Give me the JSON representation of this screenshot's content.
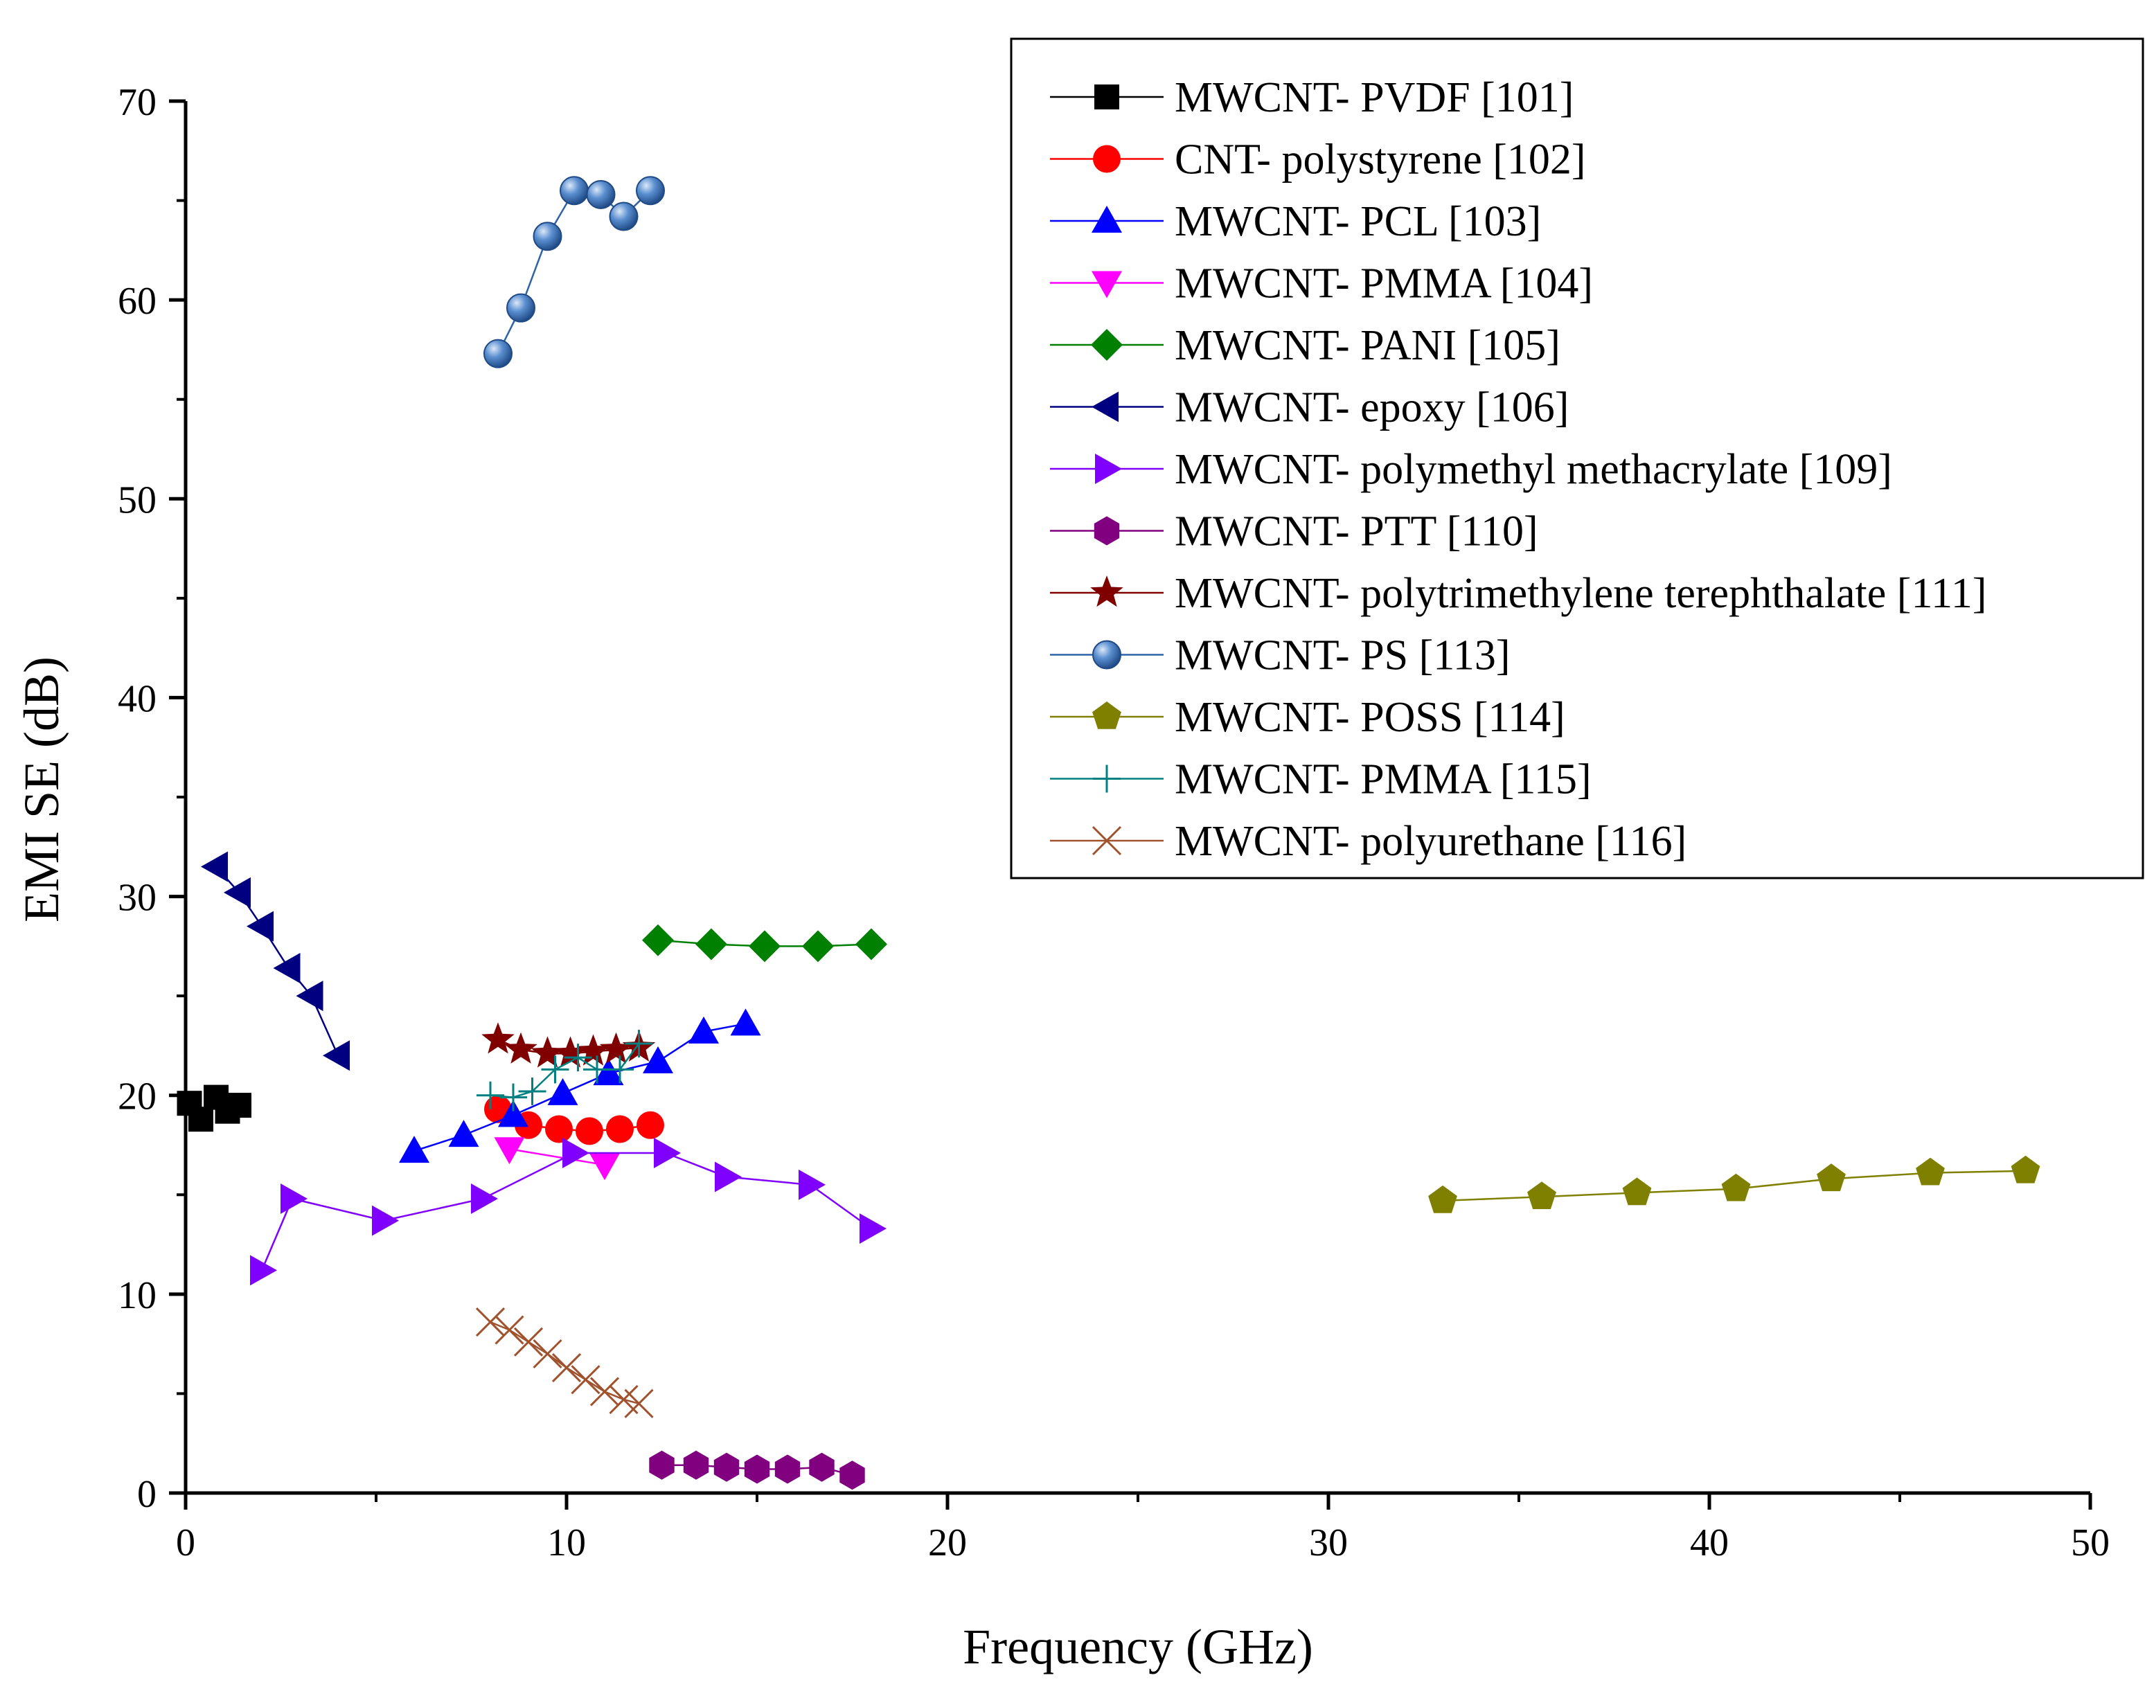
{
  "chart_data": {
    "type": "scatter",
    "title": "",
    "xlabel": "Frequency (GHz)",
    "ylabel": "EMI SE (dB)",
    "xlim": [
      0,
      50
    ],
    "ylim": [
      0,
      70
    ],
    "x_ticks": [
      "0",
      "10",
      "20",
      "30",
      "40",
      "50"
    ],
    "y_ticks": [
      "0",
      "10",
      "20",
      "30",
      "40",
      "50",
      "60",
      "70"
    ],
    "grid": false,
    "legend_position": "top-right",
    "series": [
      {
        "name": "MWCNT- PVDF [101]",
        "color": "#000000",
        "marker": "square",
        "x": [
          0.1,
          0.4,
          0.8,
          1.1,
          1.4
        ],
        "y": [
          19.6,
          18.8,
          19.9,
          19.2,
          19.5
        ]
      },
      {
        "name": "CNT- polystyrene [102]",
        "color": "#ff0000",
        "marker": "circle",
        "x": [
          8.2,
          9.0,
          9.8,
          10.6,
          11.4,
          12.2
        ],
        "y": [
          19.3,
          18.5,
          18.3,
          18.2,
          18.3,
          18.5
        ]
      },
      {
        "name": "MWCNT- PCL [103]",
        "color": "#0000ff",
        "marker": "triangle-up",
        "x": [
          6.0,
          7.3,
          8.6,
          9.9,
          11.1,
          12.4,
          13.6,
          14.7
        ],
        "y": [
          17.2,
          18.0,
          19.0,
          20.1,
          21.1,
          21.7,
          23.2,
          23.6
        ]
      },
      {
        "name": "MWCNT- PMMA [104]",
        "color": "#ff00ff",
        "marker": "triangle-down",
        "x": [
          8.5,
          11.0
        ],
        "y": [
          17.3,
          16.5
        ]
      },
      {
        "name": "MWCNT- PANI [105]",
        "color": "#008000",
        "marker": "diamond",
        "x": [
          12.4,
          13.8,
          15.2,
          16.6,
          18.0
        ],
        "y": [
          27.8,
          27.6,
          27.5,
          27.5,
          27.6
        ]
      },
      {
        "name": "MWCNT- epoxy [106]",
        "color": "#000080",
        "marker": "triangle-left",
        "x": [
          0.8,
          1.4,
          2.0,
          2.7,
          3.3,
          4.0
        ],
        "y": [
          31.5,
          30.2,
          28.5,
          26.4,
          25.0,
          22.0
        ]
      },
      {
        "name": "MWCNT- polymethyl methacrylate [109]",
        "color": "#8000ff",
        "marker": "triangle-right",
        "x": [
          2.0,
          2.8,
          5.2,
          7.8,
          10.2,
          12.6,
          14.2,
          16.4,
          18.0
        ],
        "y": [
          11.2,
          14.8,
          13.7,
          14.8,
          17.1,
          17.1,
          15.9,
          15.5,
          13.3
        ]
      },
      {
        "name": "MWCNT- PTT [110]",
        "color": "#800080",
        "marker": "hexagon",
        "x": [
          12.5,
          13.4,
          14.2,
          15.0,
          15.8,
          16.7,
          17.5
        ],
        "y": [
          1.4,
          1.4,
          1.3,
          1.2,
          1.2,
          1.3,
          0.9
        ]
      },
      {
        "name": "MWCNT- polytrimethylene terephthalate [111]",
        "color": "#800000",
        "marker": "star",
        "x": [
          8.2,
          8.8,
          9.5,
          10.1,
          10.7,
          11.3,
          11.9
        ],
        "y": [
          22.8,
          22.3,
          22.1,
          22.1,
          22.2,
          22.3,
          22.4
        ]
      },
      {
        "name": "MWCNT- PS [113]",
        "color": "#2e63a8",
        "marker": "sphere",
        "x": [
          8.2,
          8.8,
          9.5,
          10.2,
          10.9,
          11.5,
          12.2
        ],
        "y": [
          57.3,
          59.6,
          63.2,
          65.5,
          65.3,
          64.2,
          65.5
        ]
      },
      {
        "name": "MWCNT- POSS [114]",
        "color": "#808000",
        "marker": "pentagon",
        "x": [
          33.0,
          35.6,
          38.1,
          40.7,
          43.2,
          45.8,
          48.3
        ],
        "y": [
          14.7,
          14.9,
          15.1,
          15.3,
          15.8,
          16.1,
          16.2
        ]
      },
      {
        "name": "MWCNT- PMMA [115]",
        "color": "#008080",
        "marker": "plus",
        "x": [
          8.0,
          8.6,
          9.1,
          9.7,
          10.3,
          10.8,
          11.4,
          11.9
        ],
        "y": [
          20.0,
          19.9,
          20.2,
          21.3,
          21.9,
          21.3,
          21.3,
          22.6
        ]
      },
      {
        "name": "MWCNT- polyurethane [116]",
        "color": "#a0522d",
        "marker": "x",
        "x": [
          8.0,
          8.5,
          9.0,
          9.5,
          10.0,
          10.5,
          11.0,
          11.5,
          11.9
        ],
        "y": [
          8.6,
          8.2,
          7.6,
          7.0,
          6.3,
          5.7,
          5.1,
          4.7,
          4.5
        ]
      }
    ]
  }
}
